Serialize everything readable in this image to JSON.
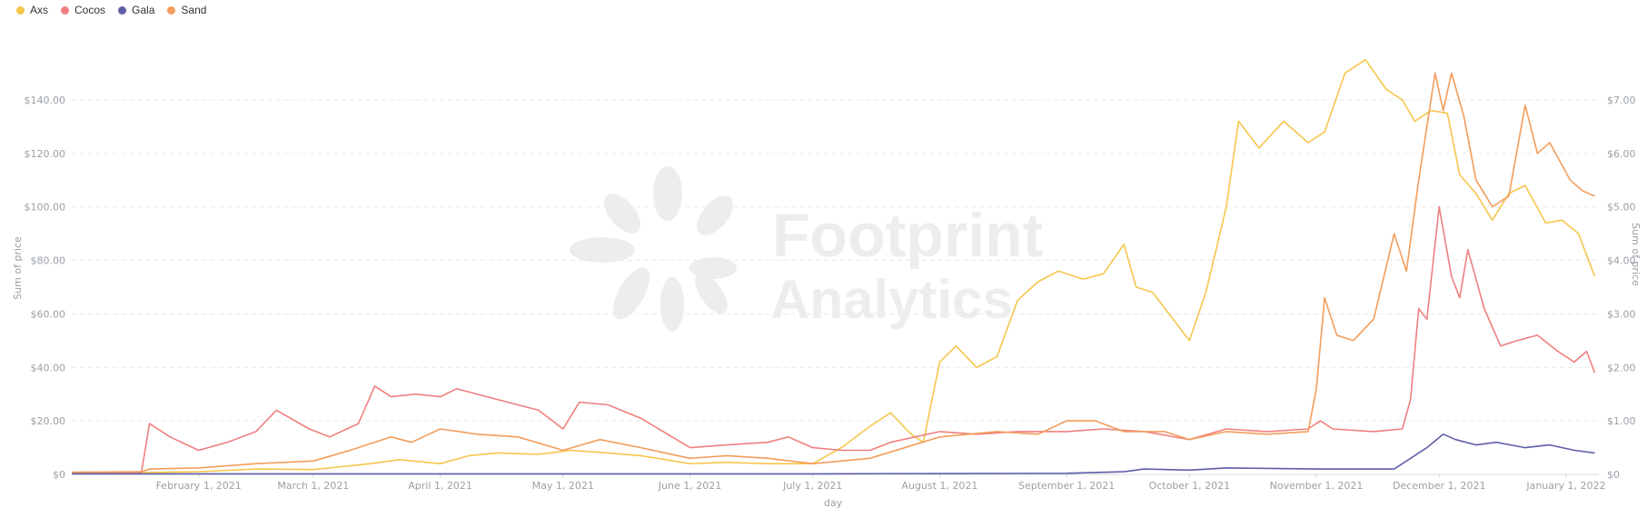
{
  "legend": [
    {
      "name": "Axs",
      "color": "#f6c64d"
    },
    {
      "name": "Cocos",
      "color": "#ef7f7f"
    },
    {
      "name": "Gala",
      "color": "#5e5fa8"
    },
    {
      "name": "Sand",
      "color": "#f29d5c"
    }
  ],
  "watermark": {
    "line1": "Footprint",
    "line2": "Analytics"
  },
  "chart_data": {
    "type": "line",
    "xlabel": "day",
    "ylabel_left": "Sum of price",
    "ylabel_right": "Sum of price",
    "xlim": [
      "2021-01-01",
      "2022-01-09"
    ],
    "x_ticks": [
      "February 1, 2021",
      "March 1, 2021",
      "April 1, 2021",
      "May 1, 2021",
      "June 1, 2021",
      "July 1, 2021",
      "August 1, 2021",
      "September 1, 2021",
      "October 1, 2021",
      "November 1, 2021",
      "December 1, 2021",
      "January 1, 2022"
    ],
    "y_left": {
      "ticks": [
        "$0",
        "$20.00",
        "$40.00",
        "$60.00",
        "$80.00",
        "$100.00",
        "$120.00",
        "$140.00"
      ],
      "ylim": [
        0,
        160
      ]
    },
    "y_right": {
      "ticks": [
        "$0",
        "$1.00",
        "$2.00",
        "$3.00",
        "$4.00",
        "$5.00",
        "$6.00",
        "$7.00"
      ],
      "ylim": [
        0,
        8
      ]
    },
    "grid": true,
    "legend_position": "top-left",
    "series": [
      {
        "name": "Axs",
        "axis": "left",
        "color": "#f6c64d",
        "points": [
          [
            "2021-01-01",
            0.5
          ],
          [
            "2021-01-15",
            0.6
          ],
          [
            "2021-02-01",
            1
          ],
          [
            "2021-02-15",
            2
          ],
          [
            "2021-03-01",
            1.8
          ],
          [
            "2021-03-15",
            4
          ],
          [
            "2021-03-22",
            5.5
          ],
          [
            "2021-04-01",
            4
          ],
          [
            "2021-04-08",
            7
          ],
          [
            "2021-04-15",
            8
          ],
          [
            "2021-04-25",
            7.5
          ],
          [
            "2021-05-03",
            9
          ],
          [
            "2021-05-12",
            8
          ],
          [
            "2021-05-20",
            7
          ],
          [
            "2021-06-01",
            4
          ],
          [
            "2021-06-10",
            4.5
          ],
          [
            "2021-06-20",
            4
          ],
          [
            "2021-07-01",
            4
          ],
          [
            "2021-07-08",
            10
          ],
          [
            "2021-07-15",
            18
          ],
          [
            "2021-07-20",
            23
          ],
          [
            "2021-07-25",
            15
          ],
          [
            "2021-07-28",
            12
          ],
          [
            "2021-08-01",
            42
          ],
          [
            "2021-08-05",
            48
          ],
          [
            "2021-08-10",
            40
          ],
          [
            "2021-08-15",
            44
          ],
          [
            "2021-08-20",
            65
          ],
          [
            "2021-08-25",
            72
          ],
          [
            "2021-08-30",
            76
          ],
          [
            "2021-09-05",
            73
          ],
          [
            "2021-09-10",
            75
          ],
          [
            "2021-09-15",
            86
          ],
          [
            "2021-09-18",
            70
          ],
          [
            "2021-09-22",
            68
          ],
          [
            "2021-09-28",
            56
          ],
          [
            "2021-10-01",
            50
          ],
          [
            "2021-10-05",
            68
          ],
          [
            "2021-10-10",
            100
          ],
          [
            "2021-10-13",
            132
          ],
          [
            "2021-10-18",
            122
          ],
          [
            "2021-10-24",
            132
          ],
          [
            "2021-10-30",
            124
          ],
          [
            "2021-11-03",
            128
          ],
          [
            "2021-11-08",
            150
          ],
          [
            "2021-11-13",
            155
          ],
          [
            "2021-11-18",
            144
          ],
          [
            "2021-11-22",
            140
          ],
          [
            "2021-11-25",
            132
          ],
          [
            "2021-11-29",
            136
          ],
          [
            "2021-12-03",
            135
          ],
          [
            "2021-12-06",
            112
          ],
          [
            "2021-12-10",
            105
          ],
          [
            "2021-12-14",
            95
          ],
          [
            "2021-12-18",
            105
          ],
          [
            "2021-12-22",
            108
          ],
          [
            "2021-12-27",
            94
          ],
          [
            "2021-12-31",
            95
          ],
          [
            "2022-01-04",
            90
          ],
          [
            "2022-01-08",
            74
          ]
        ]
      },
      {
        "name": "Cocos",
        "axis": "right",
        "color": "#ef7f7f",
        "points": [
          [
            "2021-01-01",
            0.03
          ],
          [
            "2021-01-18",
            0.03
          ],
          [
            "2021-01-20",
            0.95
          ],
          [
            "2021-01-25",
            0.7
          ],
          [
            "2021-02-01",
            0.45
          ],
          [
            "2021-02-08",
            0.6
          ],
          [
            "2021-02-15",
            0.8
          ],
          [
            "2021-02-20",
            1.2
          ],
          [
            "2021-02-28",
            0.85
          ],
          [
            "2021-03-05",
            0.7
          ],
          [
            "2021-03-12",
            0.95
          ],
          [
            "2021-03-16",
            1.65
          ],
          [
            "2021-03-20",
            1.45
          ],
          [
            "2021-03-26",
            1.5
          ],
          [
            "2021-04-01",
            1.45
          ],
          [
            "2021-04-05",
            1.6
          ],
          [
            "2021-04-15",
            1.4
          ],
          [
            "2021-04-25",
            1.2
          ],
          [
            "2021-05-01",
            0.85
          ],
          [
            "2021-05-05",
            1.35
          ],
          [
            "2021-05-12",
            1.3
          ],
          [
            "2021-05-20",
            1.05
          ],
          [
            "2021-06-01",
            0.5
          ],
          [
            "2021-06-10",
            0.55
          ],
          [
            "2021-06-20",
            0.6
          ],
          [
            "2021-06-25",
            0.7
          ],
          [
            "2021-07-01",
            0.5
          ],
          [
            "2021-07-08",
            0.45
          ],
          [
            "2021-07-15",
            0.45
          ],
          [
            "2021-07-20",
            0.6
          ],
          [
            "2021-08-01",
            0.8
          ],
          [
            "2021-08-10",
            0.75
          ],
          [
            "2021-08-20",
            0.8
          ],
          [
            "2021-09-01",
            0.8
          ],
          [
            "2021-09-10",
            0.85
          ],
          [
            "2021-09-20",
            0.8
          ],
          [
            "2021-10-01",
            0.65
          ],
          [
            "2021-10-10",
            0.85
          ],
          [
            "2021-10-20",
            0.8
          ],
          [
            "2021-10-30",
            0.85
          ],
          [
            "2021-11-02",
            1.0
          ],
          [
            "2021-11-05",
            0.85
          ],
          [
            "2021-11-15",
            0.8
          ],
          [
            "2021-11-22",
            0.85
          ],
          [
            "2021-11-24",
            1.4
          ],
          [
            "2021-11-26",
            3.1
          ],
          [
            "2021-11-28",
            2.9
          ],
          [
            "2021-12-01",
            5.0
          ],
          [
            "2021-12-04",
            3.7
          ],
          [
            "2021-12-06",
            3.3
          ],
          [
            "2021-12-08",
            4.2
          ],
          [
            "2021-12-12",
            3.1
          ],
          [
            "2021-12-16",
            2.4
          ],
          [
            "2021-12-20",
            2.5
          ],
          [
            "2021-12-25",
            2.6
          ],
          [
            "2021-12-30",
            2.3
          ],
          [
            "2022-01-03",
            2.1
          ],
          [
            "2022-01-06",
            2.3
          ],
          [
            "2022-01-08",
            1.9
          ]
        ]
      },
      {
        "name": "Gala",
        "axis": "right",
        "color": "#5e5fa8",
        "points": [
          [
            "2021-01-01",
            0.01
          ],
          [
            "2021-03-01",
            0.01
          ],
          [
            "2021-05-01",
            0.01
          ],
          [
            "2021-07-01",
            0.01
          ],
          [
            "2021-09-01",
            0.02
          ],
          [
            "2021-09-15",
            0.05
          ],
          [
            "2021-09-20",
            0.1
          ],
          [
            "2021-10-01",
            0.08
          ],
          [
            "2021-10-10",
            0.12
          ],
          [
            "2021-11-01",
            0.1
          ],
          [
            "2021-11-20",
            0.1
          ],
          [
            "2021-11-28",
            0.5
          ],
          [
            "2021-12-02",
            0.75
          ],
          [
            "2021-12-05",
            0.65
          ],
          [
            "2021-12-10",
            0.55
          ],
          [
            "2021-12-15",
            0.6
          ],
          [
            "2021-12-22",
            0.5
          ],
          [
            "2021-12-28",
            0.55
          ],
          [
            "2022-01-03",
            0.45
          ],
          [
            "2022-01-08",
            0.4
          ]
        ]
      },
      {
        "name": "Sand",
        "axis": "right",
        "color": "#f29d5c",
        "points": [
          [
            "2021-01-01",
            0.04
          ],
          [
            "2021-01-18",
            0.05
          ],
          [
            "2021-01-20",
            0.1
          ],
          [
            "2021-02-01",
            0.12
          ],
          [
            "2021-02-15",
            0.2
          ],
          [
            "2021-03-01",
            0.25
          ],
          [
            "2021-03-10",
            0.45
          ],
          [
            "2021-03-20",
            0.7
          ],
          [
            "2021-03-25",
            0.6
          ],
          [
            "2021-04-01",
            0.85
          ],
          [
            "2021-04-10",
            0.75
          ],
          [
            "2021-04-20",
            0.7
          ],
          [
            "2021-05-01",
            0.45
          ],
          [
            "2021-05-10",
            0.65
          ],
          [
            "2021-05-20",
            0.5
          ],
          [
            "2021-06-01",
            0.3
          ],
          [
            "2021-06-10",
            0.35
          ],
          [
            "2021-06-20",
            0.3
          ],
          [
            "2021-07-01",
            0.2
          ],
          [
            "2021-07-15",
            0.3
          ],
          [
            "2021-08-01",
            0.7
          ],
          [
            "2021-08-15",
            0.8
          ],
          [
            "2021-08-25",
            0.75
          ],
          [
            "2021-09-01",
            1.0
          ],
          [
            "2021-09-08",
            1.0
          ],
          [
            "2021-09-15",
            0.8
          ],
          [
            "2021-09-25",
            0.8
          ],
          [
            "2021-10-01",
            0.65
          ],
          [
            "2021-10-10",
            0.8
          ],
          [
            "2021-10-20",
            0.75
          ],
          [
            "2021-10-30",
            0.8
          ],
          [
            "2021-11-01",
            1.6
          ],
          [
            "2021-11-03",
            3.3
          ],
          [
            "2021-11-06",
            2.6
          ],
          [
            "2021-11-10",
            2.5
          ],
          [
            "2021-11-15",
            2.9
          ],
          [
            "2021-11-20",
            4.5
          ],
          [
            "2021-11-23",
            3.8
          ],
          [
            "2021-11-26",
            5.5
          ],
          [
            "2021-11-30",
            7.5
          ],
          [
            "2021-12-02",
            6.8
          ],
          [
            "2021-12-04",
            7.5
          ],
          [
            "2021-12-07",
            6.7
          ],
          [
            "2021-12-10",
            5.5
          ],
          [
            "2021-12-14",
            5.0
          ],
          [
            "2021-12-18",
            5.2
          ],
          [
            "2021-12-22",
            6.9
          ],
          [
            "2021-12-25",
            6.0
          ],
          [
            "2021-12-28",
            6.2
          ],
          [
            "2022-01-02",
            5.5
          ],
          [
            "2022-01-05",
            5.3
          ],
          [
            "2022-01-08",
            5.2
          ]
        ]
      }
    ]
  }
}
